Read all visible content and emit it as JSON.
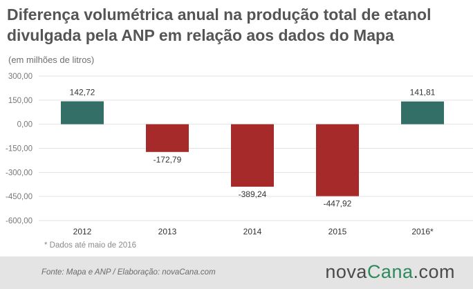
{
  "title_line1": "Diferença volumétrica anual na produção total de etanol",
  "title_line2": "divulgada pela ANP em relação aos dados do Mapa",
  "subtitle": "(em milhões de litros)",
  "footnote": "* Dados até maio de 2016",
  "source": "Fonte: Mapa e ANP / Elaboração: novaCana.com",
  "logo": {
    "part1": "nova",
    "part2": "Cana",
    "part3": ".com"
  },
  "colors": {
    "positive": "#336e67",
    "negative": "#a62a29",
    "grid": "#e2e2e2",
    "text": "#333333",
    "axis_text": "#777777"
  },
  "chart_data": {
    "type": "bar",
    "categories": [
      "2012",
      "2013",
      "2014",
      "2015",
      "2016*"
    ],
    "values": [
      142.72,
      -172.79,
      -389.24,
      -447.92,
      141.81
    ],
    "value_labels": [
      "142,72",
      "-172,79",
      "-389,24",
      "-447,92",
      "141,81"
    ],
    "ylim": [
      -600,
      300
    ],
    "yticks": [
      300,
      150,
      0,
      -150,
      -300,
      -450,
      -600
    ],
    "ytick_labels": [
      "300,00",
      "150,00",
      "0,00",
      "-150,00",
      "-300,00",
      "-450,00",
      "-600,00"
    ],
    "grid": true,
    "legend": "none"
  }
}
